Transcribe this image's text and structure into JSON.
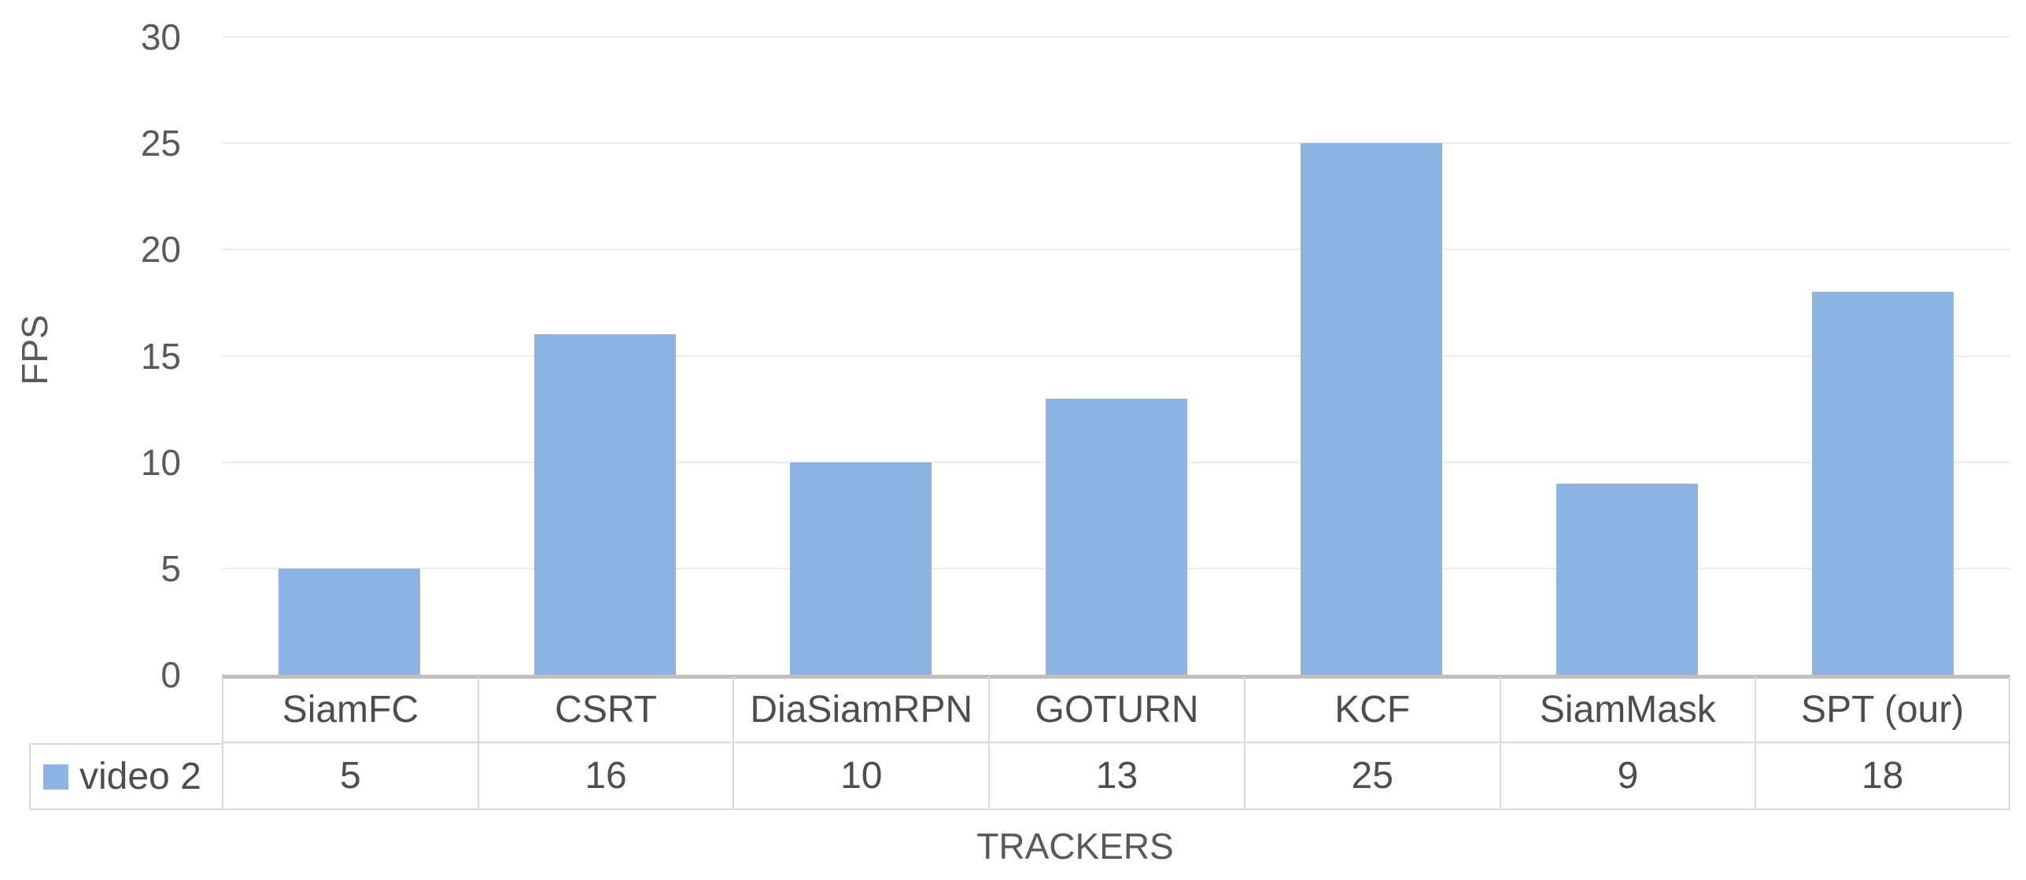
{
  "chart": {
    "y_axis_title": "FPS",
    "x_axis_title": "TRACKERS"
  },
  "chart_data": {
    "type": "bar",
    "title": "",
    "xlabel": "TRACKERS",
    "ylabel": "FPS",
    "categories": [
      "SiamFC",
      "CSRT",
      "DiaSiamRPN",
      "GOTURN",
      "KCF",
      "SiamMask",
      "SPT (our)"
    ],
    "series": [
      {
        "name": "video 2",
        "values": [
          5,
          16,
          10,
          13,
          25,
          9,
          18
        ]
      }
    ],
    "ylim": [
      0,
      30
    ],
    "yticks": [
      0,
      5,
      10,
      15,
      20,
      25,
      30
    ],
    "grid": true,
    "legend_position": "bottom-left-data-table",
    "data_table_shown": true
  },
  "style": {
    "bar_color": "#8DB4E2",
    "grid_color": "#EBEBEB",
    "axis_text_color": "#595959",
    "table_text_color": "#4D4D4D",
    "table_border_color": "#D9D9D9",
    "table_top_border_color": "#BFBFBF",
    "background": "#FFFFFF"
  }
}
